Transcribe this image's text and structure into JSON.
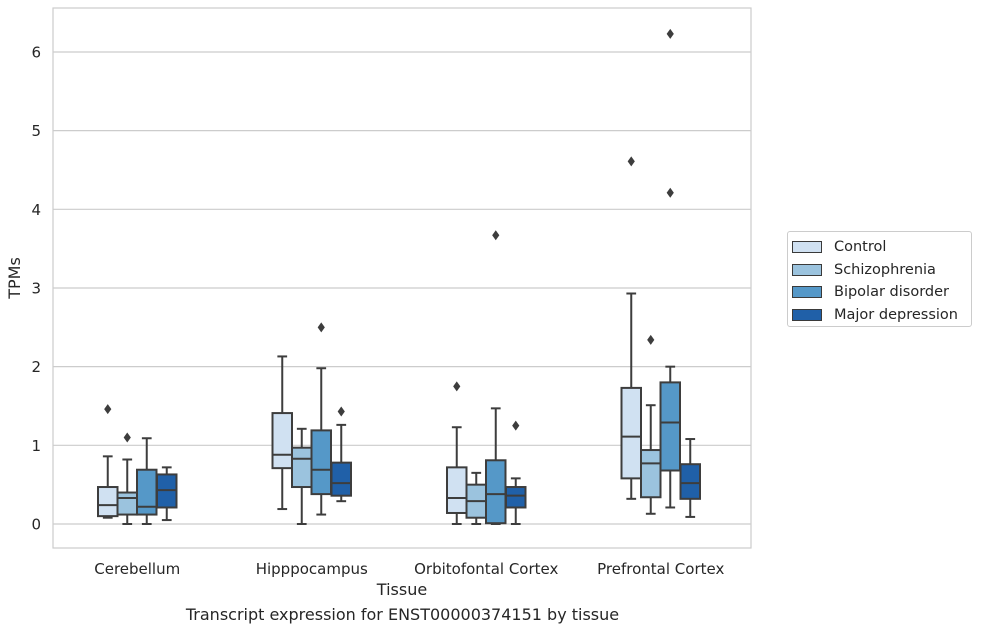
{
  "chart_data": {
    "type": "box",
    "caption": "Transcript expression for ENST00000374151 by tissue",
    "xlabel": "Tissue",
    "ylabel": "TPMs",
    "ylim": [
      -0.3,
      6.55
    ],
    "yticks": [
      0,
      1,
      2,
      3,
      4,
      5,
      6
    ],
    "grid": "horizontal",
    "legend_position": "right",
    "categories": [
      "Cerebellum",
      "Hipppocampus",
      "Orbitofontal Cortex",
      "Prefrontal Cortex"
    ],
    "series": [
      {
        "name": "Control",
        "color": "#d0e1f2",
        "boxes": [
          {
            "whislo": 0.08,
            "q1": 0.1,
            "med": 0.24,
            "q3": 0.47,
            "whishi": 0.86,
            "fliers": [
              1.46
            ]
          },
          {
            "whislo": 0.19,
            "q1": 0.71,
            "med": 0.88,
            "q3": 1.41,
            "whishi": 2.13,
            "fliers": []
          },
          {
            "whislo": 0.0,
            "q1": 0.14,
            "med": 0.33,
            "q3": 0.72,
            "whishi": 1.23,
            "fliers": [
              1.75
            ]
          },
          {
            "whislo": 0.32,
            "q1": 0.58,
            "med": 1.11,
            "q3": 1.73,
            "whishi": 2.93,
            "fliers": [
              4.61
            ]
          }
        ]
      },
      {
        "name": "Schizophrenia",
        "color": "#9bc3de",
        "boxes": [
          {
            "whislo": 0.0,
            "q1": 0.12,
            "med": 0.33,
            "q3": 0.4,
            "whishi": 0.82,
            "fliers": [
              1.1
            ]
          },
          {
            "whislo": 0.0,
            "q1": 0.47,
            "med": 0.83,
            "q3": 0.97,
            "whishi": 1.21,
            "fliers": []
          },
          {
            "whislo": 0.0,
            "q1": 0.08,
            "med": 0.29,
            "q3": 0.5,
            "whishi": 0.65,
            "fliers": []
          },
          {
            "whislo": 0.13,
            "q1": 0.34,
            "med": 0.77,
            "q3": 0.94,
            "whishi": 1.51,
            "fliers": [
              2.34
            ]
          }
        ]
      },
      {
        "name": "Bipolar disorder",
        "color": "#5598c8",
        "boxes": [
          {
            "whislo": 0.0,
            "q1": 0.12,
            "med": 0.22,
            "q3": 0.69,
            "whishi": 1.09,
            "fliers": []
          },
          {
            "whislo": 0.12,
            "q1": 0.38,
            "med": 0.69,
            "q3": 1.19,
            "whishi": 1.98,
            "fliers": [
              2.5
            ]
          },
          {
            "whislo": 0.0,
            "q1": 0.01,
            "med": 0.38,
            "q3": 0.81,
            "whishi": 1.47,
            "fliers": [
              3.67
            ]
          },
          {
            "whislo": 0.21,
            "q1": 0.68,
            "med": 1.29,
            "q3": 1.8,
            "whishi": 2.0,
            "fliers": [
              4.21,
              6.23
            ]
          }
        ]
      },
      {
        "name": "Major depression",
        "color": "#2060a8",
        "boxes": [
          {
            "whislo": 0.05,
            "q1": 0.21,
            "med": 0.43,
            "q3": 0.63,
            "whishi": 0.72,
            "fliers": []
          },
          {
            "whislo": 0.29,
            "q1": 0.36,
            "med": 0.52,
            "q3": 0.78,
            "whishi": 1.26,
            "fliers": [
              1.43
            ]
          },
          {
            "whislo": 0.0,
            "q1": 0.21,
            "med": 0.36,
            "q3": 0.47,
            "whishi": 0.58,
            "fliers": [
              1.25
            ]
          },
          {
            "whislo": 0.09,
            "q1": 0.32,
            "med": 0.52,
            "q3": 0.76,
            "whishi": 1.08,
            "fliers": []
          }
        ]
      }
    ]
  }
}
